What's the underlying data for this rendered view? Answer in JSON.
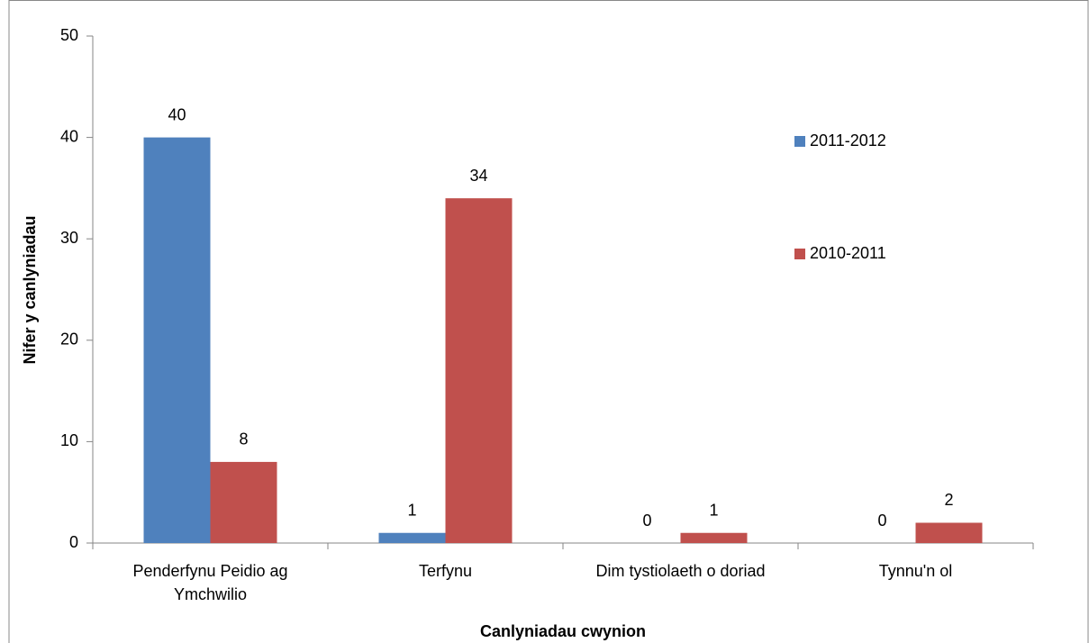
{
  "chart_data": {
    "type": "bar",
    "x_label": "Canlyniadau cwynion",
    "y_label": "Nifer y canlyniadau",
    "categories": [
      "Penderfynu Peidio ag Ymchwilio",
      "Terfynu",
      "Dim tystiolaeth o doriad",
      "Tynnu'n ol"
    ],
    "series": [
      {
        "name": "2011-2012",
        "color": "#4f81bd",
        "values": [
          40,
          1,
          0,
          0
        ]
      },
      {
        "name": "2010-2011",
        "color": "#c0504d",
        "values": [
          8,
          34,
          1,
          2
        ]
      }
    ],
    "ylim": [
      0,
      50
    ],
    "yticks": [
      0,
      10,
      20,
      30,
      40,
      50
    ],
    "grid": false,
    "legend": "right"
  }
}
